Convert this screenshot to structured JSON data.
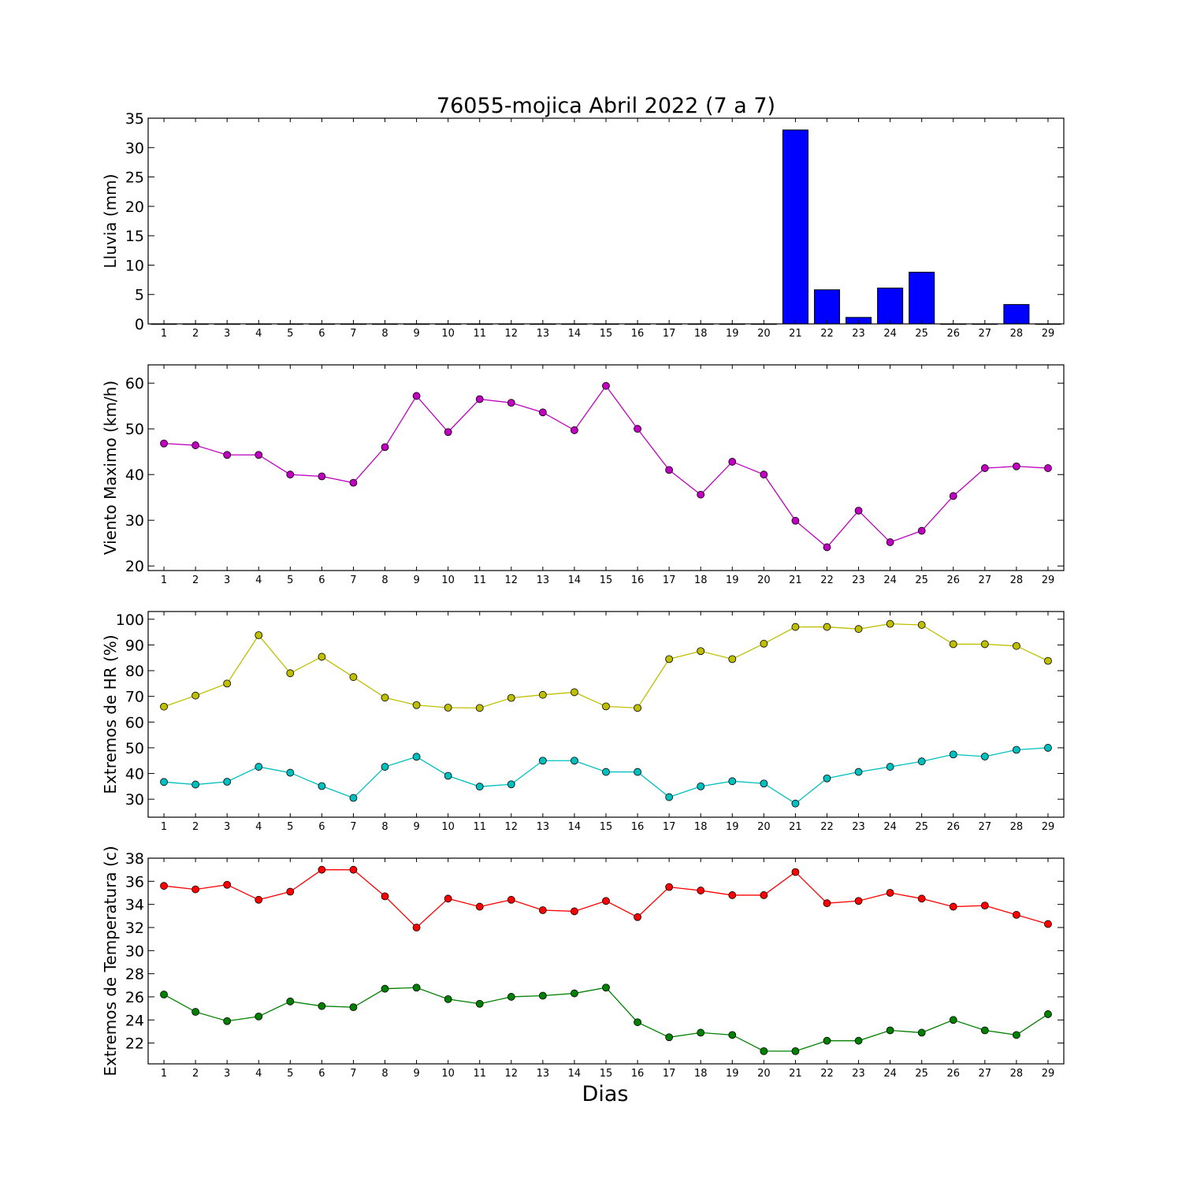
{
  "figure": {
    "title": "76055-mojica Abril 2022  (7 a 7)",
    "xlabel": "Dias"
  },
  "chart_data": [
    {
      "type": "bar",
      "ylabel": "Lluvia (mm)",
      "xlim": [
        0.5,
        29.5
      ],
      "ylim": [
        0,
        35
      ],
      "yticks": [
        0,
        5,
        10,
        15,
        20,
        25,
        30,
        35
      ],
      "categories": [
        1,
        2,
        3,
        4,
        5,
        6,
        7,
        8,
        9,
        10,
        11,
        12,
        13,
        14,
        15,
        16,
        17,
        18,
        19,
        20,
        21,
        22,
        23,
        24,
        25,
        26,
        27,
        28,
        29
      ],
      "series": [
        {
          "color": "#0000ff",
          "values": [
            0,
            0,
            0,
            0,
            0,
            0,
            0,
            0,
            0,
            0,
            0,
            0,
            0,
            0,
            0,
            0,
            0,
            0,
            0,
            0,
            33.0,
            5.8,
            1.1,
            6.1,
            8.8,
            0,
            0,
            3.3,
            0
          ]
        }
      ]
    },
    {
      "type": "line",
      "ylabel": "Viento Maximo (km/h)",
      "xlim": [
        0.5,
        29.5
      ],
      "ylim": [
        19,
        64
      ],
      "yticks": [
        20,
        30,
        40,
        50,
        60
      ],
      "x": [
        1,
        2,
        3,
        4,
        5,
        6,
        7,
        8,
        9,
        10,
        11,
        12,
        13,
        14,
        15,
        16,
        17,
        18,
        19,
        20,
        21,
        22,
        23,
        24,
        25,
        26,
        27,
        28,
        29
      ],
      "series": [
        {
          "color": "#bf00bf",
          "values": [
            46.8,
            46.4,
            44.3,
            44.3,
            40.0,
            39.6,
            38.2,
            46.0,
            57.2,
            49.3,
            56.5,
            55.7,
            53.6,
            49.7,
            59.4,
            50.0,
            41.0,
            35.6,
            42.8,
            40.0,
            29.9,
            24.1,
            32.1,
            25.2,
            27.7,
            35.3,
            41.4,
            41.8,
            41.4
          ]
        }
      ]
    },
    {
      "type": "line",
      "ylabel": "Extremos de HR (%)",
      "xlim": [
        0.5,
        29.5
      ],
      "ylim": [
        23,
        103
      ],
      "yticks": [
        30,
        40,
        50,
        60,
        70,
        80,
        90,
        100
      ],
      "x": [
        1,
        2,
        3,
        4,
        5,
        6,
        7,
        8,
        9,
        10,
        11,
        12,
        13,
        14,
        15,
        16,
        17,
        18,
        19,
        20,
        21,
        22,
        23,
        24,
        25,
        26,
        27,
        28,
        29
      ],
      "series": [
        {
          "color": "#bfbf00",
          "values": [
            66,
            70.3,
            75,
            93.8,
            79,
            85.4,
            77.5,
            69.5,
            66.6,
            65.6,
            65.5,
            69.4,
            70.6,
            71.6,
            66.1,
            65.5,
            84.5,
            87.6,
            84.5,
            90.5,
            97,
            97,
            96.2,
            98.2,
            97.8,
            90.3,
            90.3,
            89.6,
            83.8
          ]
        },
        {
          "color": "#00bfbf",
          "values": [
            36.7,
            35.7,
            36.8,
            42.6,
            40.3,
            35.1,
            30.5,
            42.6,
            46.5,
            39.1,
            34.9,
            35.8,
            45,
            45,
            40.6,
            40.6,
            30.8,
            35,
            37,
            36.1,
            28.3,
            38.1,
            40.6,
            42.6,
            44.7,
            47.4,
            46.6,
            49.2,
            50
          ]
        }
      ]
    },
    {
      "type": "line",
      "ylabel": "Extremos de Temperatura (c)",
      "xlim": [
        0.5,
        29.5
      ],
      "ylim": [
        20.2,
        38
      ],
      "yticks": [
        22,
        24,
        26,
        28,
        30,
        32,
        34,
        36,
        38
      ],
      "x": [
        1,
        2,
        3,
        4,
        5,
        6,
        7,
        8,
        9,
        10,
        11,
        12,
        13,
        14,
        15,
        16,
        17,
        18,
        19,
        20,
        21,
        22,
        23,
        24,
        25,
        26,
        27,
        28,
        29
      ],
      "series": [
        {
          "color": "#ff0000",
          "values": [
            35.6,
            35.3,
            35.7,
            34.4,
            35.1,
            37.0,
            37.0,
            34.7,
            32.0,
            34.5,
            33.8,
            34.4,
            33.5,
            33.4,
            34.3,
            32.9,
            35.5,
            35.2,
            34.8,
            34.8,
            36.8,
            34.1,
            34.3,
            35.0,
            34.5,
            33.8,
            33.9,
            33.1,
            32.3
          ]
        },
        {
          "color": "#008000",
          "values": [
            26.2,
            24.7,
            23.9,
            24.3,
            25.6,
            25.2,
            25.1,
            26.7,
            26.8,
            25.8,
            25.4,
            26.0,
            26.1,
            26.3,
            26.8,
            23.8,
            22.5,
            22.9,
            22.7,
            21.3,
            21.3,
            22.2,
            22.2,
            23.1,
            22.9,
            24.0,
            23.1,
            22.7,
            24.5
          ]
        }
      ]
    }
  ]
}
